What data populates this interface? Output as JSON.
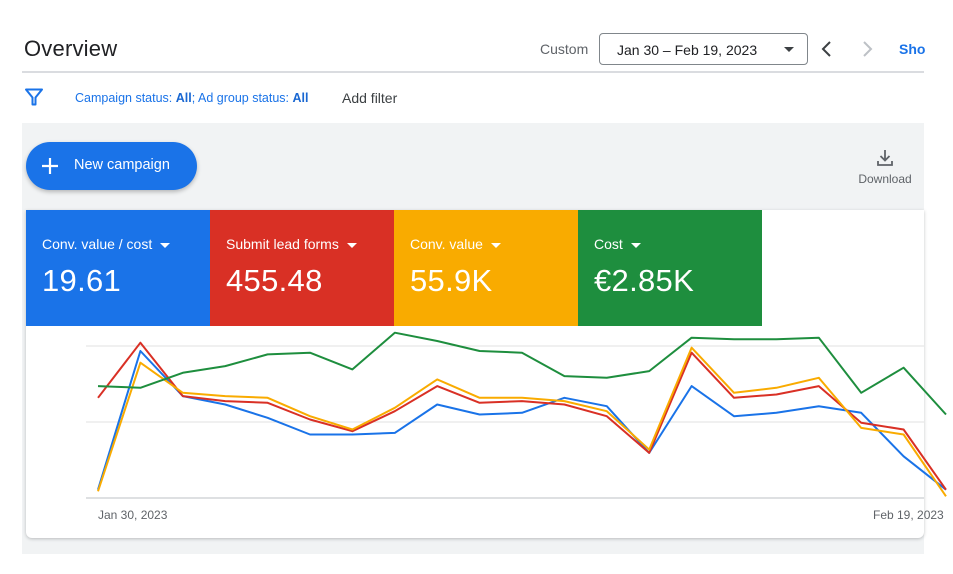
{
  "header": {
    "title": "Overview",
    "range_label": "Custom",
    "date_range": "Jan 30 – Feb 19, 2023",
    "show_link": "Sho"
  },
  "filter_bar": {
    "campaign_status_label": "Campaign status: ",
    "campaign_status_value": "All",
    "separator": "; ",
    "ad_group_status_label": "Ad group status: ",
    "ad_group_status_value": "All",
    "add_filter": "Add filter"
  },
  "toolbar": {
    "new_campaign": "New campaign",
    "download": "Download"
  },
  "metrics": [
    {
      "label": "Conv. value / cost",
      "value": "19.61",
      "color": "#1a73e8"
    },
    {
      "label": "Submit lead forms",
      "value": "455.48",
      "color": "#d93025"
    },
    {
      "label": "Conv. value",
      "value": "55.9K",
      "color": "#f9ab00"
    },
    {
      "label": "Cost",
      "value": "€2.85K",
      "color": "#1e8e3e"
    }
  ],
  "chart_data": {
    "type": "line",
    "x_tick_labels": [
      "Jan 30, 2023",
      "Feb 19, 2023"
    ],
    "grid": true,
    "legend": "none",
    "y_scale": "normalized per series (no y-axis labels shown)",
    "x": [
      "Jan 30",
      "Jan 31",
      "Feb 1",
      "Feb 2",
      "Feb 3",
      "Feb 4",
      "Feb 5",
      "Feb 6",
      "Feb 7",
      "Feb 8",
      "Feb 9",
      "Feb 10",
      "Feb 11",
      "Feb 12",
      "Feb 13",
      "Feb 14",
      "Feb 15",
      "Feb 16",
      "Feb 17",
      "Feb 18",
      "Feb 19"
    ],
    "series": [
      {
        "name": "Conv. value / cost",
        "color": "#1a73e8",
        "values": [
          5,
          88,
          61,
          56,
          48,
          38,
          38,
          39,
          56,
          50,
          51,
          60,
          55,
          27,
          67,
          49,
          51,
          55,
          51,
          25,
          5
        ]
      },
      {
        "name": "Submit lead forms",
        "color": "#d93025",
        "values": [
          60,
          93,
          61,
          58,
          57,
          47,
          40,
          52,
          67,
          57,
          58,
          56,
          49,
          27,
          87,
          60,
          62,
          67,
          45,
          41,
          5
        ]
      },
      {
        "name": "Conv. value",
        "color": "#f9ab00",
        "values": [
          4,
          81,
          63,
          61,
          60,
          49,
          41,
          54,
          71,
          60,
          60,
          58,
          52,
          29,
          90,
          63,
          66,
          72,
          42,
          38,
          1
        ]
      },
      {
        "name": "Cost",
        "color": "#1e8e3e",
        "values": [
          67,
          66,
          75,
          79,
          86,
          87,
          77,
          99,
          94,
          88,
          87,
          73,
          72,
          76,
          96,
          95,
          95,
          96,
          63,
          78,
          50
        ]
      }
    ]
  }
}
